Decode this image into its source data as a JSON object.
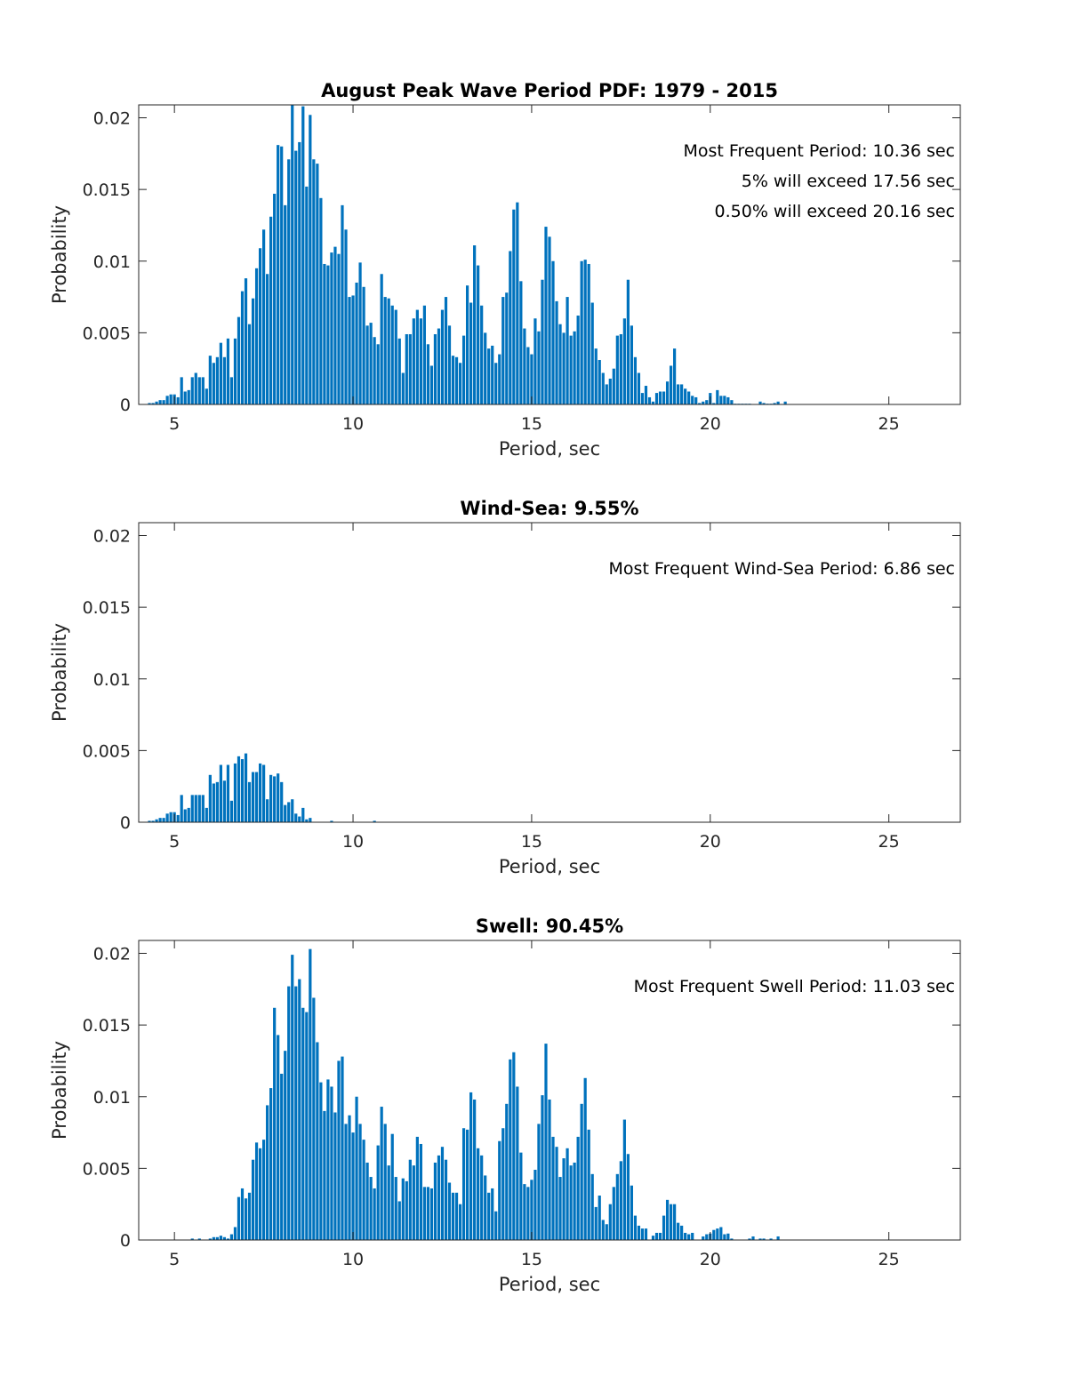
{
  "figure_title": "August Peak Wave Period PDF: 1979 - 2015",
  "chart_data": [
    {
      "type": "bar",
      "title": "August Peak Wave Period PDF: 1979 - 2015",
      "xlabel": "Period, sec",
      "ylabel": "Probability",
      "xlim": [
        4,
        27
      ],
      "ylim": [
        0,
        0.0209
      ],
      "xticks": [
        "5",
        "10",
        "15",
        "20",
        "25"
      ],
      "xtick_values": [
        5,
        10,
        15,
        20,
        25
      ],
      "yticks": [
        "0",
        "0.005",
        "0.01",
        "0.015",
        "0.02"
      ],
      "ytick_values": [
        0,
        0.005,
        0.01,
        0.015,
        0.02
      ],
      "bar_color": "#0072BD",
      "x_start": 4.3,
      "bin_width": 0.1,
      "annotations": [
        "Most Frequent Period: 10.36 sec",
        "5% will exceed 17.56 sec",
        "0.50% will exceed 20.16 sec"
      ],
      "values": [
        0.0001,
        0.0001,
        0.0002,
        0.0003,
        0.0003,
        0.0006,
        0.0007,
        0.0007,
        0.0005,
        0.0019,
        0.0009,
        0.001,
        0.0019,
        0.0022,
        0.0019,
        0.0019,
        0.0011,
        0.0034,
        0.0029,
        0.0033,
        0.0043,
        0.0033,
        0.0046,
        0.0019,
        0.0046,
        0.0061,
        0.0079,
        0.0088,
        0.0056,
        0.0074,
        0.0095,
        0.0109,
        0.0122,
        0.0091,
        0.0131,
        0.0147,
        0.0181,
        0.018,
        0.0139,
        0.0171,
        0.021,
        0.0177,
        0.0183,
        0.0208,
        0.0152,
        0.0202,
        0.0171,
        0.0168,
        0.0144,
        0.0098,
        0.0097,
        0.0106,
        0.011,
        0.0105,
        0.0139,
        0.0122,
        0.0075,
        0.0076,
        0.0085,
        0.0099,
        0.0082,
        0.0055,
        0.0057,
        0.0047,
        0.0042,
        0.0091,
        0.0075,
        0.0074,
        0.0069,
        0.0066,
        0.0046,
        0.0022,
        0.0049,
        0.0049,
        0.006,
        0.0066,
        0.006,
        0.0069,
        0.0042,
        0.0027,
        0.0049,
        0.0053,
        0.0066,
        0.0075,
        0.0055,
        0.0034,
        0.0033,
        0.0029,
        0.0048,
        0.0083,
        0.0071,
        0.0111,
        0.0097,
        0.0069,
        0.005,
        0.0039,
        0.0041,
        0.0029,
        0.0035,
        0.0075,
        0.0078,
        0.0107,
        0.0136,
        0.0141,
        0.0086,
        0.0053,
        0.004,
        0.0035,
        0.006,
        0.0051,
        0.0087,
        0.0124,
        0.0117,
        0.01,
        0.0072,
        0.0056,
        0.005,
        0.0075,
        0.0048,
        0.0051,
        0.0062,
        0.01,
        0.0101,
        0.0098,
        0.0071,
        0.0039,
        0.0031,
        0.0022,
        0.0014,
        0.0018,
        0.0025,
        0.0048,
        0.0049,
        0.006,
        0.0087,
        0.0055,
        0.0033,
        0.0022,
        0.0008,
        0.0013,
        0.0005,
        0.0002,
        0.0008,
        0.0009,
        0.0009,
        0.0016,
        0.0027,
        0.0039,
        0.0014,
        0.0014,
        0.0011,
        0.0009,
        0.0006,
        0.0005,
        0.0001,
        0.0002,
        0.0003,
        0.0008,
        0.0001,
        0.001,
        0.0006,
        0.0006,
        0.0005,
        0.0003,
        5e-05,
        5e-05,
        5e-05,
        5e-05,
        5e-05,
        0,
        0,
        0.0002,
        0.0001,
        5e-05,
        5e-05,
        0.0001,
        0.0002,
        0,
        0.0002
      ]
    },
    {
      "type": "bar",
      "title": "Wind-Sea: 9.55%",
      "xlabel": "Period, sec",
      "ylabel": "Probability",
      "xlim": [
        4,
        27
      ],
      "ylim": [
        0,
        0.0209
      ],
      "xticks": [
        "5",
        "10",
        "15",
        "20",
        "25"
      ],
      "xtick_values": [
        5,
        10,
        15,
        20,
        25
      ],
      "yticks": [
        "0",
        "0.005",
        "0.01",
        "0.015",
        "0.02"
      ],
      "ytick_values": [
        0,
        0.005,
        0.01,
        0.015,
        0.02
      ],
      "bar_color": "#0072BD",
      "x_start": 4.3,
      "bin_width": 0.1,
      "annotations": [
        "Most Frequent Wind-Sea Period: 6.86 sec"
      ],
      "values": [
        0.0001,
        0.0001,
        0.0002,
        0.0003,
        0.0003,
        0.0006,
        0.0007,
        0.0007,
        0.0005,
        0.0019,
        0.0009,
        0.001,
        0.0019,
        0.0019,
        0.0019,
        0.0019,
        0.001,
        0.0033,
        0.0027,
        0.0028,
        0.004,
        0.0029,
        0.004,
        0.0015,
        0.0041,
        0.0046,
        0.0044,
        0.0048,
        0.0028,
        0.0035,
        0.0035,
        0.0041,
        0.004,
        0.0016,
        0.0033,
        0.0032,
        0.0034,
        0.0028,
        0.0012,
        0.0014,
        0.0016,
        0.0006,
        0.0004,
        0.001,
        0.0002,
        0.0003,
        0,
        0,
        0,
        0,
        0,
        0.0001,
        0,
        0,
        0,
        0,
        0,
        0,
        0,
        0,
        0,
        0,
        0,
        0.0001
      ]
    },
    {
      "type": "bar",
      "title": "Swell: 90.45%",
      "xlabel": "Period, sec",
      "ylabel": "Probability",
      "xlim": [
        4,
        27
      ],
      "ylim": [
        0,
        0.0209
      ],
      "xticks": [
        "5",
        "10",
        "15",
        "20",
        "25"
      ],
      "xtick_values": [
        5,
        10,
        15,
        20,
        25
      ],
      "yticks": [
        "0",
        "0.005",
        "0.01",
        "0.015",
        "0.02"
      ],
      "ytick_values": [
        0,
        0.005,
        0.01,
        0.015,
        0.02
      ],
      "bar_color": "#0072BD",
      "x_start": 4.3,
      "bin_width": 0.1,
      "annotations": [
        "Most Frequent Swell Period: 11.03 sec"
      ],
      "values": [
        0,
        0,
        0,
        0,
        0,
        0,
        0,
        0,
        0,
        0,
        0,
        0,
        0.0001,
        0,
        0.0001,
        0,
        0,
        0.0001,
        0.0002,
        0.0002,
        0.0003,
        0.0002,
        0.0001,
        0.0004,
        0.0009,
        0.003,
        0.0036,
        0.0029,
        0.0033,
        0.0056,
        0.0068,
        0.0064,
        0.007,
        0.0094,
        0.0106,
        0.0162,
        0.0143,
        0.0116,
        0.0132,
        0.0177,
        0.0199,
        0.0177,
        0.0182,
        0.0162,
        0.0159,
        0.0203,
        0.0169,
        0.0138,
        0.011,
        0.009,
        0.0112,
        0.0107,
        0.0089,
        0.0125,
        0.0128,
        0.0081,
        0.0087,
        0.0075,
        0.01,
        0.0081,
        0.007,
        0.0054,
        0.0044,
        0.0036,
        0.0066,
        0.0093,
        0.0081,
        0.0052,
        0.0074,
        0.0044,
        0.0027,
        0.0043,
        0.0041,
        0.0056,
        0.0052,
        0.0072,
        0.0067,
        0.0037,
        0.0037,
        0.0036,
        0.0054,
        0.0059,
        0.0065,
        0.0056,
        0.004,
        0.0033,
        0.0033,
        0.0025,
        0.0078,
        0.0077,
        0.0103,
        0.0098,
        0.0064,
        0.0059,
        0.0045,
        0.0033,
        0.0036,
        0.002,
        0.0069,
        0.0078,
        0.0095,
        0.0126,
        0.0131,
        0.0107,
        0.0061,
        0.0039,
        0.0037,
        0.0042,
        0.0049,
        0.0081,
        0.0101,
        0.0137,
        0.0098,
        0.0072,
        0.0065,
        0.0044,
        0.0057,
        0.0064,
        0.0052,
        0.0054,
        0.0072,
        0.0095,
        0.0113,
        0.0077,
        0.0046,
        0.0023,
        0.0031,
        0.0014,
        0.0011,
        0.0025,
        0.0037,
        0.0046,
        0.0055,
        0.0084,
        0.006,
        0.0038,
        0.0017,
        0.001,
        0.0008,
        0.0008,
        0,
        0.0003,
        0.0005,
        0.0005,
        0.0017,
        0.0028,
        0.0025,
        0.0025,
        0.0012,
        0.001,
        0.0005,
        0.0004,
        0.0005,
        0,
        0,
        0.00025,
        0.0004,
        0.00045,
        0.0007,
        0.0008,
        0.0009,
        0.0004,
        0.00045,
        0.0001,
        0,
        0,
        0,
        0,
        0.0001,
        0.00025,
        0,
        0.0001,
        0.0001,
        0,
        0.0001,
        0,
        0.00025
      ]
    }
  ]
}
